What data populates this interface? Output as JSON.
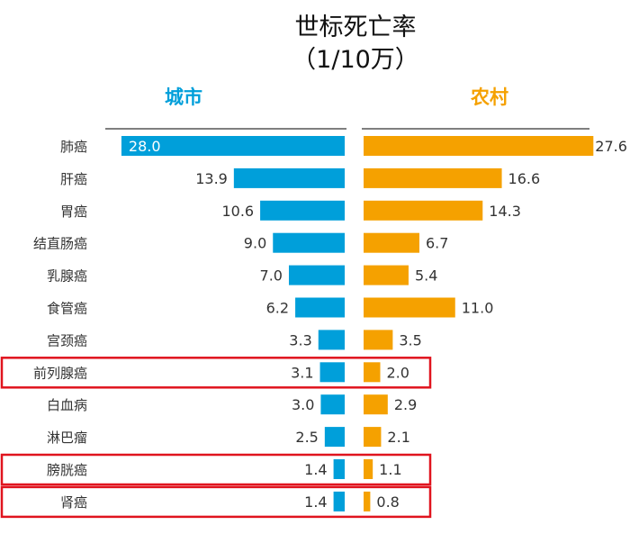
{
  "chart_data": {
    "type": "bar",
    "orientation": "horizontal-butterfly",
    "title": "世标死亡率",
    "subtitle": "（1/10万）",
    "categories": [
      "肺癌",
      "肝癌",
      "胃癌",
      "结直肠癌",
      "乳腺癌",
      "食管癌",
      "宫颈癌",
      "前列腺癌",
      "白血病",
      "淋巴瘤",
      "膀胱癌",
      "肾癌"
    ],
    "series": [
      {
        "name": "城市",
        "color": "#009FDA",
        "values": [
          28.0,
          13.9,
          10.6,
          9.0,
          7.0,
          6.2,
          3.3,
          3.1,
          3.0,
          2.5,
          1.4,
          1.4
        ]
      },
      {
        "name": "农村",
        "color": "#F5A100",
        "values": [
          27.6,
          16.6,
          14.3,
          6.7,
          5.4,
          11.0,
          3.5,
          2.0,
          2.9,
          2.1,
          1.1,
          0.8
        ]
      }
    ],
    "highlighted_categories": [
      "前列腺癌",
      "膀胱癌",
      "肾癌"
    ],
    "highlight_color": "#E0141E",
    "grid": false
  }
}
